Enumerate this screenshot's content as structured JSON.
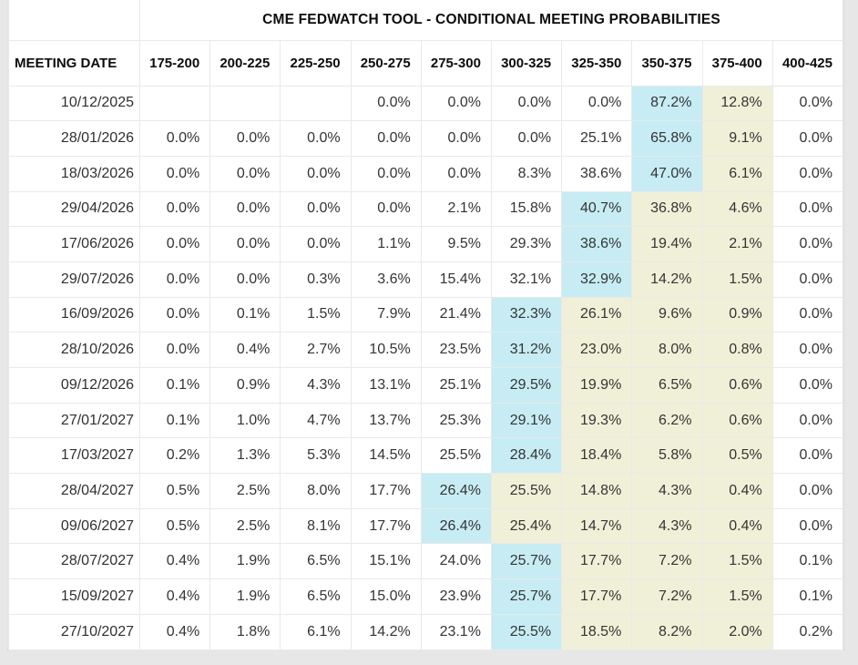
{
  "title": "CME FEDWATCH TOOL - CONDITIONAL MEETING PROBABILITIES",
  "colors": {
    "highlight_max_blue": "#c7ecf4",
    "highlight_trail_yellow": "#f0f0d8"
  },
  "table": {
    "columns": [
      "MEETING DATE",
      "175-200",
      "200-225",
      "225-250",
      "250-275",
      "275-300",
      "300-325",
      "325-350",
      "350-375",
      "375-400",
      "400-425"
    ],
    "rows": [
      {
        "date": "10/12/2025",
        "values": [
          "",
          "",
          "",
          "0.0%",
          "0.0%",
          "0.0%",
          "0.0%",
          "87.2%",
          "12.8%",
          "0.0%"
        ],
        "max_col": 7,
        "trail_cols": [
          8
        ]
      },
      {
        "date": "28/01/2026",
        "values": [
          "0.0%",
          "0.0%",
          "0.0%",
          "0.0%",
          "0.0%",
          "0.0%",
          "25.1%",
          "65.8%",
          "9.1%",
          "0.0%"
        ],
        "max_col": 7,
        "trail_cols": [
          8
        ]
      },
      {
        "date": "18/03/2026",
        "values": [
          "0.0%",
          "0.0%",
          "0.0%",
          "0.0%",
          "0.0%",
          "8.3%",
          "38.6%",
          "47.0%",
          "6.1%",
          "0.0%"
        ],
        "max_col": 7,
        "trail_cols": [
          8
        ]
      },
      {
        "date": "29/04/2026",
        "values": [
          "0.0%",
          "0.0%",
          "0.0%",
          "0.0%",
          "2.1%",
          "15.8%",
          "40.7%",
          "36.8%",
          "4.6%",
          "0.0%"
        ],
        "max_col": 6,
        "trail_cols": [
          7,
          8
        ]
      },
      {
        "date": "17/06/2026",
        "values": [
          "0.0%",
          "0.0%",
          "0.0%",
          "1.1%",
          "9.5%",
          "29.3%",
          "38.6%",
          "19.4%",
          "2.1%",
          "0.0%"
        ],
        "max_col": 6,
        "trail_cols": [
          7,
          8
        ]
      },
      {
        "date": "29/07/2026",
        "values": [
          "0.0%",
          "0.0%",
          "0.3%",
          "3.6%",
          "15.4%",
          "32.1%",
          "32.9%",
          "14.2%",
          "1.5%",
          "0.0%"
        ],
        "max_col": 6,
        "trail_cols": [
          7,
          8
        ]
      },
      {
        "date": "16/09/2026",
        "values": [
          "0.0%",
          "0.1%",
          "1.5%",
          "7.9%",
          "21.4%",
          "32.3%",
          "26.1%",
          "9.6%",
          "0.9%",
          "0.0%"
        ],
        "max_col": 5,
        "trail_cols": [
          6,
          7,
          8
        ]
      },
      {
        "date": "28/10/2026",
        "values": [
          "0.0%",
          "0.4%",
          "2.7%",
          "10.5%",
          "23.5%",
          "31.2%",
          "23.0%",
          "8.0%",
          "0.8%",
          "0.0%"
        ],
        "max_col": 5,
        "trail_cols": [
          6,
          7,
          8
        ]
      },
      {
        "date": "09/12/2026",
        "values": [
          "0.1%",
          "0.9%",
          "4.3%",
          "13.1%",
          "25.1%",
          "29.5%",
          "19.9%",
          "6.5%",
          "0.6%",
          "0.0%"
        ],
        "max_col": 5,
        "trail_cols": [
          6,
          7,
          8
        ]
      },
      {
        "date": "27/01/2027",
        "values": [
          "0.1%",
          "1.0%",
          "4.7%",
          "13.7%",
          "25.3%",
          "29.1%",
          "19.3%",
          "6.2%",
          "0.6%",
          "0.0%"
        ],
        "max_col": 5,
        "trail_cols": [
          6,
          7,
          8
        ]
      },
      {
        "date": "17/03/2027",
        "values": [
          "0.2%",
          "1.3%",
          "5.3%",
          "14.5%",
          "25.5%",
          "28.4%",
          "18.4%",
          "5.8%",
          "0.5%",
          "0.0%"
        ],
        "max_col": 5,
        "trail_cols": [
          6,
          7,
          8
        ]
      },
      {
        "date": "28/04/2027",
        "values": [
          "0.5%",
          "2.5%",
          "8.0%",
          "17.7%",
          "26.4%",
          "25.5%",
          "14.8%",
          "4.3%",
          "0.4%",
          "0.0%"
        ],
        "max_col": 4,
        "trail_cols": [
          5,
          6,
          7,
          8
        ]
      },
      {
        "date": "09/06/2027",
        "values": [
          "0.5%",
          "2.5%",
          "8.1%",
          "17.7%",
          "26.4%",
          "25.4%",
          "14.7%",
          "4.3%",
          "0.4%",
          "0.0%"
        ],
        "max_col": 4,
        "trail_cols": [
          5,
          6,
          7,
          8
        ]
      },
      {
        "date": "28/07/2027",
        "values": [
          "0.4%",
          "1.9%",
          "6.5%",
          "15.1%",
          "24.0%",
          "25.7%",
          "17.7%",
          "7.2%",
          "1.5%",
          "0.1%"
        ],
        "max_col": 5,
        "trail_cols": [
          6,
          7,
          8
        ]
      },
      {
        "date": "15/09/2027",
        "values": [
          "0.4%",
          "1.9%",
          "6.5%",
          "15.0%",
          "23.9%",
          "25.7%",
          "17.7%",
          "7.2%",
          "1.5%",
          "0.1%"
        ],
        "max_col": 5,
        "trail_cols": [
          6,
          7,
          8
        ]
      },
      {
        "date": "27/10/2027",
        "values": [
          "0.4%",
          "1.8%",
          "6.1%",
          "14.2%",
          "23.1%",
          "25.5%",
          "18.5%",
          "8.2%",
          "2.0%",
          "0.2%"
        ],
        "max_col": 5,
        "trail_cols": [
          6,
          7,
          8
        ]
      }
    ]
  }
}
